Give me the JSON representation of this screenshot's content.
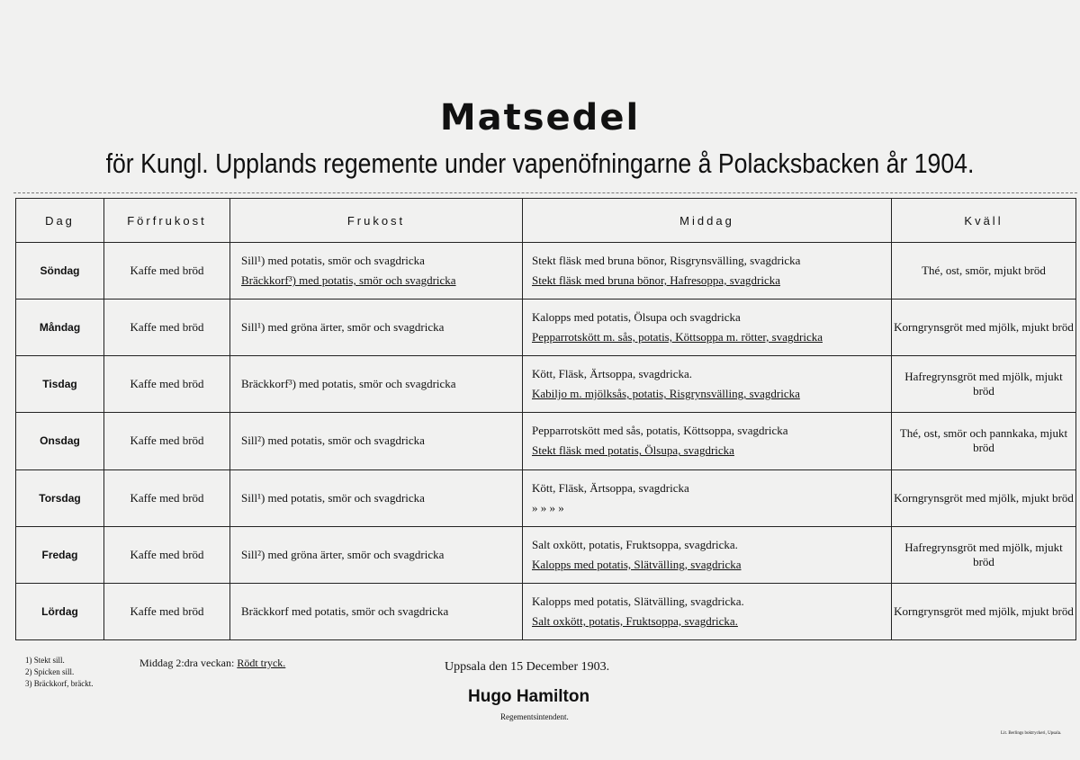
{
  "title": "Matsedel",
  "subtitle": "för Kungl. Upplands regemente under vapenöfningarne å Polacksbacken år 1904.",
  "table": {
    "headers": [
      "Dag",
      "Förfrukost",
      "Frukost",
      "Middag",
      "Kväll"
    ],
    "rows": [
      {
        "day": "Söndag",
        "forfrukost": "Kaffe med bröd",
        "frukost": [
          "Sill¹) med potatis, smör och svagdricka",
          "Bräckkorf³) med potatis, smör och svagdricka"
        ],
        "frukost_underline": [
          false,
          true
        ],
        "middag": [
          "Stekt fläsk med bruna bönor, Risgrynsvälling, svagdricka",
          "Stekt fläsk med bruna bönor, Hafresoppa, svagdricka"
        ],
        "kvall": "Thé, ost, smör, mjukt bröd"
      },
      {
        "day": "Måndag",
        "forfrukost": "Kaffe med bröd",
        "frukost": [
          "Sill¹) med gröna ärter, smör och svagdricka"
        ],
        "middag": [
          "Kalopps med potatis, Ölsupa och svagdricka",
          "Pepparrotskött m. sås, potatis, Köttsoppa m. rötter, svagdricka"
        ],
        "kvall": "Korngrynsgröt med mjölk, mjukt bröd"
      },
      {
        "day": "Tisdag",
        "forfrukost": "Kaffe med bröd",
        "frukost": [
          "Bräckkorf³) med potatis, smör och svagdricka"
        ],
        "middag": [
          "Kött, Fläsk, Ärtsoppa, svagdricka.",
          "Kabiljo m. mjölksås, potatis, Risgrynsvälling, svagdricka"
        ],
        "kvall": "Hafregrynsgröt med mjölk, mjukt bröd"
      },
      {
        "day": "Onsdag",
        "forfrukost": "Kaffe med bröd",
        "frukost": [
          "Sill²) med potatis, smör och svagdricka"
        ],
        "middag": [
          "Pepparrotskött med sås, potatis, Köttsoppa, svagdricka",
          "Stekt fläsk med potatis, Ölsupa, svagdricka"
        ],
        "kvall": "Thé, ost, smör och pannkaka, mjukt bröd"
      },
      {
        "day": "Torsdag",
        "forfrukost": "Kaffe med bröd",
        "frukost": [
          "Sill¹) med potatis, smör och svagdricka"
        ],
        "middag": [
          "Kött, Fläsk, Ärtsoppa, svagdricka",
          "»          »          »          »"
        ],
        "kvall": "Korngrynsgröt med mjölk, mjukt bröd"
      },
      {
        "day": "Fredag",
        "forfrukost": "Kaffe med bröd",
        "frukost": [
          "Sill²) med gröna ärter, smör och svagdricka"
        ],
        "middag": [
          "Salt oxkött, potatis, Fruktsoppa, svagdricka.",
          "Kalopps med potatis, Slätvälling, svagdricka"
        ],
        "kvall": "Hafregrynsgröt med mjölk, mjukt bröd"
      },
      {
        "day": "Lördag",
        "forfrukost": "Kaffe med bröd",
        "frukost": [
          "Bräckkorf med potatis, smör och svagdricka"
        ],
        "middag": [
          "Kalopps med potatis, Slätvälling, svagdricka.",
          "Salt oxkött, potatis, Fruktsoppa, svagdricka."
        ],
        "kvall": "Korngrynsgröt med mjölk, mjukt bröd"
      }
    ]
  },
  "footnotes": [
    "1) Stekt sill.",
    "2) Spicken sill.",
    "3) Bräckkorf, bräckt."
  ],
  "middag_note": {
    "label": "Middag 2:dra veckan:",
    "value": "Rödt tryck."
  },
  "place_date": "Uppsala den 15 December 1903.",
  "signature": "Hugo Hamilton",
  "signature_role": "Regementsintendent.",
  "printer": "Lit. Berlings boktryckeri, Upsala."
}
